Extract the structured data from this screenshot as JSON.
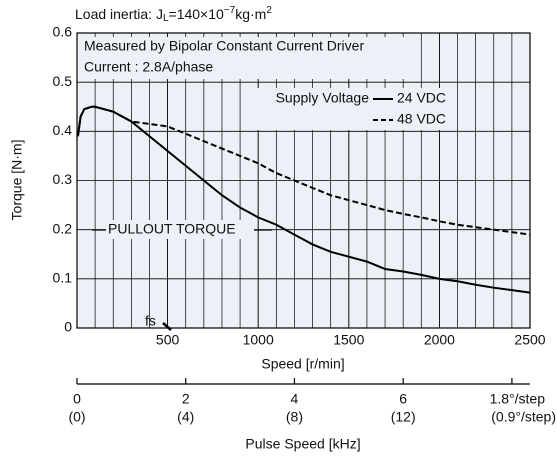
{
  "chart_data": {
    "type": "line",
    "load_inertia": {
      "prefix": "Load inertia: J",
      "sub": "L",
      "mid": "=140×10",
      "sup": "−7",
      "unit": "kg·m",
      "sup2": "2"
    },
    "annotations": [
      "Measured by Bipolar Constant Current Driver",
      "Current : 2.8A/phase",
      "PULLOUT TORQUE",
      "fs"
    ],
    "legend_title": "Supply Voltage",
    "y_label": "Torque [N·m]",
    "x_label": "Speed [r/min]",
    "x2_label": "Pulse Speed [kHz]",
    "xlim": [
      0,
      2500
    ],
    "xticks": [
      500,
      1000,
      1500,
      2000,
      2500
    ],
    "ylim": [
      0,
      0.6
    ],
    "yticks": [
      0,
      0.1,
      0.2,
      0.3,
      0.4,
      0.5,
      0.6
    ],
    "x2lim": [
      0,
      8.333
    ],
    "x2ticks": [
      {
        "value": 0,
        "label": "0",
        "sublabel": "(0)"
      },
      {
        "value": 2,
        "label": "2",
        "sublabel": "(4)"
      },
      {
        "value": 4,
        "label": "4",
        "sublabel": "(8)"
      },
      {
        "value": 6,
        "label": "6",
        "sublabel": "(12)"
      },
      {
        "value": 8,
        "label": "1.8°/step",
        "sublabel": "(0.9°/step)"
      }
    ],
    "grid": true,
    "minor_grid_step": 100,
    "series": [
      {
        "name": "24 VDC",
        "color": "#000000",
        "dash": false,
        "x": [
          5,
          20,
          40,
          80,
          100,
          200,
          300,
          400,
          500,
          600,
          700,
          800,
          900,
          1000,
          1100,
          1200,
          1300,
          1400,
          1500,
          1600,
          1700,
          1800,
          1900,
          2000,
          2100,
          2200,
          2300,
          2400,
          2500
        ],
        "values": [
          0.39,
          0.43,
          0.445,
          0.45,
          0.45,
          0.44,
          0.42,
          0.39,
          0.36,
          0.33,
          0.3,
          0.27,
          0.245,
          0.225,
          0.21,
          0.19,
          0.17,
          0.155,
          0.145,
          0.135,
          0.12,
          0.115,
          0.108,
          0.1,
          0.095,
          0.088,
          0.082,
          0.077,
          0.072
        ]
      },
      {
        "name": "48 VDC",
        "color": "#000000",
        "dash": true,
        "x": [
          5,
          20,
          40,
          80,
          100,
          200,
          300,
          400,
          500,
          600,
          700,
          800,
          900,
          1000,
          1100,
          1200,
          1300,
          1400,
          1500,
          1600,
          1700,
          1800,
          1900,
          2000,
          2100,
          2200,
          2300,
          2400,
          2500
        ],
        "values": [
          0.39,
          0.43,
          0.445,
          0.45,
          0.45,
          0.44,
          0.42,
          0.415,
          0.41,
          0.395,
          0.38,
          0.365,
          0.35,
          0.335,
          0.315,
          0.3,
          0.285,
          0.27,
          0.26,
          0.25,
          0.24,
          0.232,
          0.225,
          0.217,
          0.21,
          0.205,
          0.2,
          0.195,
          0.19
        ]
      }
    ]
  }
}
